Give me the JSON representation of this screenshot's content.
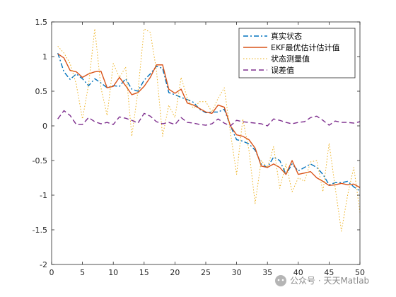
{
  "chart_data": {
    "type": "line",
    "title": "",
    "xlabel": "",
    "ylabel": "",
    "xlim": [
      0,
      50
    ],
    "ylim": [
      -2,
      1.5
    ],
    "xticks": [
      0,
      5,
      10,
      15,
      20,
      25,
      30,
      35,
      40,
      45,
      50
    ],
    "yticks": [
      -2,
      -1.5,
      -1,
      -0.5,
      0,
      0.5,
      1,
      1.5
    ],
    "grid": false,
    "legend_position": "top-right",
    "x": [
      1,
      2,
      3,
      4,
      5,
      6,
      7,
      8,
      9,
      10,
      11,
      12,
      13,
      14,
      15,
      16,
      17,
      18,
      19,
      20,
      21,
      22,
      23,
      24,
      25,
      26,
      27,
      28,
      29,
      30,
      31,
      32,
      33,
      34,
      35,
      36,
      37,
      38,
      39,
      40,
      41,
      42,
      43,
      44,
      45,
      46,
      47,
      48,
      49,
      50
    ],
    "series": [
      {
        "name": "真实状态",
        "color": "#0072BD",
        "style": "dashdot",
        "values": [
          1.05,
          0.78,
          0.67,
          0.75,
          0.68,
          0.58,
          0.68,
          0.62,
          0.55,
          0.58,
          0.57,
          0.68,
          0.53,
          0.5,
          0.66,
          0.75,
          0.86,
          0.83,
          0.48,
          0.45,
          0.41,
          0.38,
          0.34,
          0.24,
          0.19,
          0.2,
          0.2,
          0.24,
          0.0,
          -0.2,
          -0.22,
          -0.26,
          -0.35,
          -0.55,
          -0.6,
          -0.45,
          -0.5,
          -0.7,
          -0.55,
          -0.65,
          -0.6,
          -0.55,
          -0.6,
          -0.7,
          -0.85,
          -0.82,
          -0.82,
          -0.8,
          -0.88,
          -0.94
        ]
      },
      {
        "name": "EKF最优估计估计值",
        "color": "#D95319",
        "style": "solid",
        "values": [
          1.04,
          0.98,
          0.8,
          0.78,
          0.7,
          0.75,
          0.78,
          0.79,
          0.55,
          0.57,
          0.7,
          0.58,
          0.45,
          0.48,
          0.57,
          0.7,
          0.88,
          0.88,
          0.53,
          0.47,
          0.53,
          0.33,
          0.3,
          0.25,
          0.2,
          0.18,
          0.3,
          0.27,
          0.0,
          -0.13,
          -0.15,
          -0.2,
          -0.32,
          -0.58,
          -0.6,
          -0.55,
          -0.6,
          -0.7,
          -0.5,
          -0.7,
          -0.68,
          -0.66,
          -0.75,
          -0.8,
          -0.86,
          -0.85,
          -0.83,
          -0.85,
          -0.84,
          -0.89
        ]
      },
      {
        "name": "状态测量值",
        "color": "#EDB120",
        "style": "dotted",
        "values": [
          1.15,
          1.05,
          0.9,
          0.6,
          0.1,
          0.6,
          1.4,
          0.55,
          0.15,
          0.9,
          0.7,
          0.85,
          -0.15,
          0.5,
          1.4,
          1.35,
          0.8,
          -0.15,
          0.3,
          0.12,
          0.7,
          0.4,
          0.25,
          0.35,
          0.35,
          0.2,
          0.4,
          0.55,
          -0.1,
          -0.7,
          0.1,
          -0.35,
          -1.12,
          -0.5,
          -0.6,
          -0.3,
          -0.9,
          -0.55,
          -0.95,
          -0.75,
          -0.8,
          -0.52,
          -0.5,
          -0.95,
          -0.25,
          -0.9,
          -1.52,
          -1.0,
          -0.6,
          -1.25
        ]
      },
      {
        "name": "误差值",
        "color": "#7E2F8E",
        "style": "dashed",
        "values": [
          0.1,
          0.22,
          0.15,
          0.02,
          0.02,
          0.12,
          0.06,
          0.03,
          0.05,
          0.02,
          0.13,
          0.11,
          0.08,
          0.04,
          0.18,
          0.14,
          0.06,
          0.03,
          0.05,
          0.02,
          0.12,
          0.05,
          0.04,
          0.02,
          0.01,
          0.03,
          0.1,
          0.04,
          0.0,
          0.08,
          0.06,
          0.05,
          0.04,
          0.03,
          0.0,
          0.1,
          0.08,
          0.05,
          0.03,
          0.05,
          0.06,
          0.12,
          0.14,
          0.08,
          0.01,
          0.07,
          0.05,
          0.05,
          0.04,
          0.06
        ]
      }
    ]
  },
  "watermark": {
    "icon": "wechat-official-account-icon",
    "text": "公众号 · 天天Matlab"
  }
}
